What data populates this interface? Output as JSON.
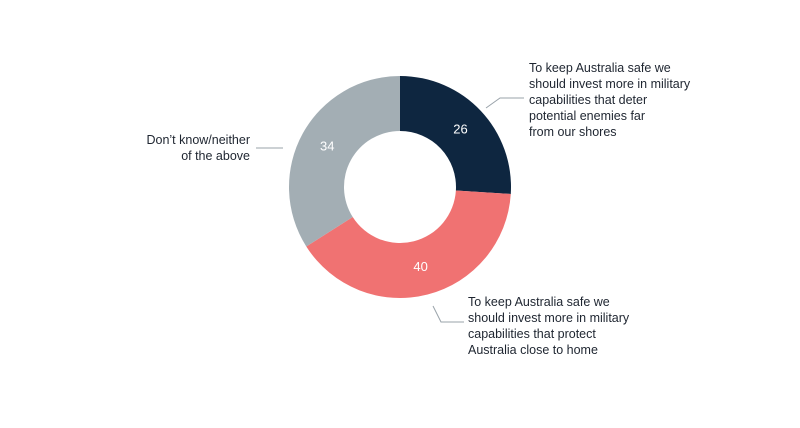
{
  "colors": {
    "deter": "#0e2640",
    "protect": "#f07272",
    "dontknow": "#a3aeb4",
    "leader": "#9aa3aa"
  },
  "chart_data": {
    "type": "pie",
    "donut": true,
    "title": "",
    "slices": [
      {
        "key": "deter",
        "value": 26,
        "label_lines": [
          "To keep Australia safe we",
          "should invest more in military",
          "capabilities that deter",
          "potential enemies far",
          "from our shores"
        ]
      },
      {
        "key": "protect",
        "value": 40,
        "label_lines": [
          "To keep Australia safe we",
          "should invest more in military",
          "capabilities that protect",
          "Australia close to home"
        ]
      },
      {
        "key": "dontknow",
        "value": 34,
        "label_lines": [
          "Don’t know/neither",
          "of the above"
        ]
      }
    ]
  }
}
